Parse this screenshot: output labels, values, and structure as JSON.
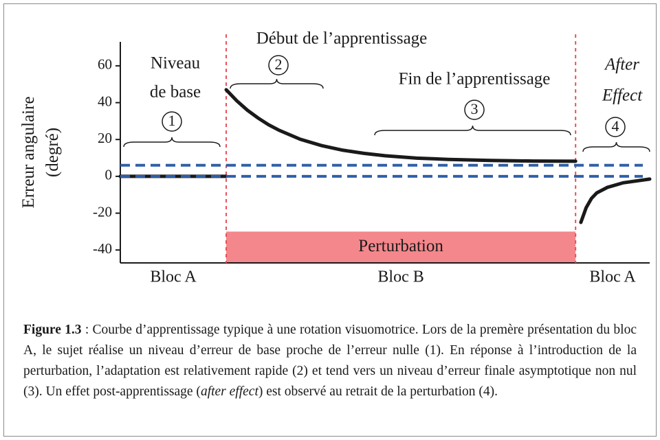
{
  "chart_data": {
    "type": "line",
    "ylabel": [
      "Erreur angulaire",
      "(degré)"
    ],
    "xlim": [
      0,
      100
    ],
    "ylim": [
      -47,
      73
    ],
    "yticks": [
      60,
      40,
      20,
      0,
      -20,
      -40
    ],
    "phases": {
      "edges": [
        0,
        20,
        86,
        100
      ],
      "labels": [
        "Bloc A",
        "Bloc B",
        "Bloc A"
      ],
      "color": "#e8505b"
    },
    "perturbation": {
      "label": "Perturbation",
      "x": [
        20,
        86
      ],
      "y": [
        -47,
        -30
      ],
      "color": "#f4878c"
    },
    "reference_lines": {
      "values": [
        6,
        0
      ],
      "color": "#2f5fa8"
    },
    "series": [
      {
        "color": "#1a1a1a",
        "x": [
          0,
          20
        ],
        "values": [
          0,
          0
        ]
      },
      {
        "color": "#1a1a1a",
        "x": [
          20,
          22,
          24,
          26,
          28,
          30,
          34,
          38,
          42,
          46,
          50,
          56,
          62,
          70,
          78,
          86
        ],
        "values": [
          47,
          41.0,
          35.9,
          31.7,
          28.0,
          25.0,
          20.1,
          16.7,
          14.2,
          12.5,
          11.2,
          9.9,
          9.2,
          8.6,
          8.3,
          8.2
        ]
      },
      {
        "color": "#1a1a1a",
        "x": [
          87,
          88,
          89,
          90,
          92,
          95,
          100
        ],
        "values": [
          -25,
          -17,
          -12,
          -9,
          -6,
          -3.5,
          -1.5
        ]
      }
    ],
    "annotations": [
      {
        "text": "Niveau"
      },
      {
        "text": "de base"
      },
      {
        "text": "1"
      },
      {
        "text": "Début de l’apprentissage"
      },
      {
        "text": "2"
      },
      {
        "text": "Fin de l’apprentissage"
      },
      {
        "text": "3"
      },
      {
        "text": "After"
      },
      {
        "text": "Effect"
      },
      {
        "text": "4"
      }
    ]
  },
  "caption": {
    "label": "Figure 1.3",
    "text": [
      " : Courbe d’apprentissage typique à une rotation visuomotrice. Lors de la premère présentation du bloc A, le sujet réalise un niveau d’erreur de base proche de l’erreur nulle (1). En réponse à l’introduction de la perturbation, l’adaptation est relativement rapide (2) et tend vers un niveau d’erreur finale asymptotique non nul (3). Un effet post-apprentissage (",
      "after effect",
      ") est observé au retrait de la perturbation (4)."
    ]
  }
}
